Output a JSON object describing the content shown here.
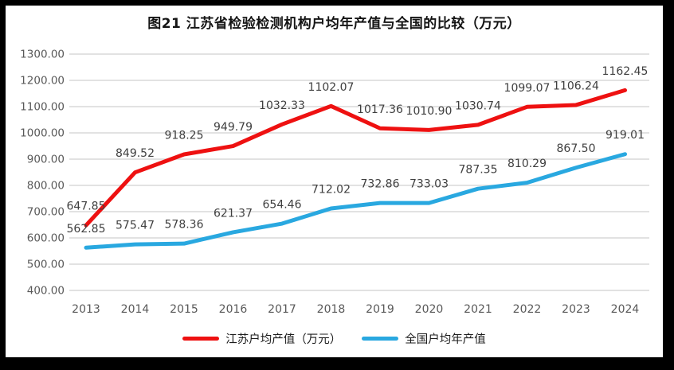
{
  "chart_data": {
    "type": "line",
    "title": "图21  江苏省检验检测机构户均年产值与全国的比较（万元）",
    "categories": [
      "2013",
      "2014",
      "2015",
      "2016",
      "2017",
      "2018",
      "2019",
      "2020",
      "2021",
      "2022",
      "2023",
      "2024"
    ],
    "series": [
      {
        "name": "江苏户均产值（万元）",
        "color": "#ee1111",
        "values": [
          647.85,
          849.52,
          918.25,
          949.79,
          1032.33,
          1102.07,
          1017.36,
          1010.9,
          1030.74,
          1099.07,
          1106.24,
          1162.45
        ]
      },
      {
        "name": "全国户均年产值",
        "color": "#29a8e0",
        "values": [
          562.85,
          575.47,
          578.36,
          621.37,
          654.46,
          712.02,
          732.86,
          733.03,
          787.35,
          810.29,
          867.5,
          919.01
        ]
      }
    ],
    "ylim": [
      400,
      1300
    ],
    "y_tick_step": 100,
    "y_tick_format_decimals": 2,
    "grid": "horizontal",
    "grid_color": "#d9d9d9",
    "tick_color": "#595959",
    "data_label_color": "#3f3f3f",
    "data_labels": true,
    "legend_position": "bottom",
    "panel_background": "#ffffff",
    "frame_color": "#000000"
  }
}
